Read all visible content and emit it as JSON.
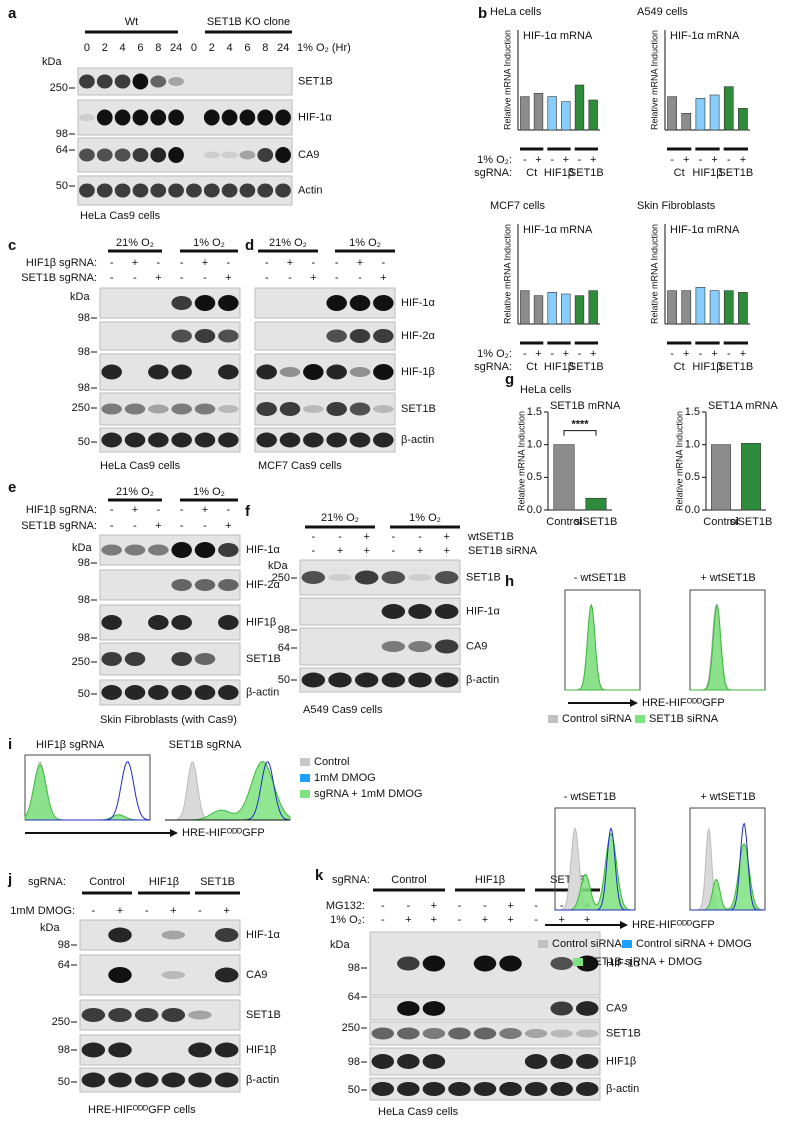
{
  "panels": {
    "a": {
      "label": "a",
      "groups": [
        "Wt",
        "SET1B KO clone"
      ],
      "lanes": [
        "0",
        "2",
        "4",
        "6",
        "8",
        "24",
        "0",
        "2",
        "4",
        "6",
        "8",
        "24"
      ],
      "condition": "1% O₂ (Hr)",
      "unit": "kDa",
      "markers": [
        "250",
        "98",
        "64",
        "50"
      ],
      "blots": [
        "SET1B",
        "HIF-1α",
        "CA9",
        "Actin"
      ],
      "caption": "HeLa Cas9 cells"
    },
    "b": {
      "label": "b"
    },
    "c": {
      "label": "c",
      "groups": [
        "21% O₂",
        "1% O₂"
      ],
      "rows": [
        {
          "label": "HIF1β sgRNA:",
          "signs": [
            "-",
            "+",
            "-",
            "-",
            "+",
            "-"
          ]
        },
        {
          "label": "SET1B sgRNA:",
          "signs": [
            "-",
            "-",
            "+",
            "-",
            "-",
            "+"
          ]
        }
      ],
      "unit": "kDa",
      "markers": [
        "98",
        "98",
        "98",
        "250",
        "50"
      ],
      "caption": "HeLa Cas9 cells"
    },
    "d": {
      "label": "d",
      "groups": [
        "21% O₂",
        "1% O₂"
      ],
      "rows": [
        {
          "signs": [
            "-",
            "+",
            "-",
            "-",
            "+",
            "-"
          ]
        },
        {
          "signs": [
            "-",
            "-",
            "+",
            "-",
            "-",
            "+"
          ]
        }
      ],
      "blots": [
        "HIF-1α",
        "HIF-2α",
        "HIF-1β",
        "SET1B",
        "β-actin"
      ],
      "caption": "MCF7 Cas9 cells"
    },
    "e": {
      "label": "e",
      "groups": [
        "21% O₂",
        "1% O₂"
      ],
      "rows": [
        {
          "label": "HIF1β sgRNA:",
          "signs": [
            "-",
            "+",
            "-",
            "-",
            "+",
            "-"
          ]
        },
        {
          "label": "SET1B sgRNA:",
          "signs": [
            "-",
            "-",
            "+",
            "-",
            "-",
            "+"
          ]
        }
      ],
      "unit": "kDa",
      "markers": [
        "98",
        "98",
        "98",
        "250",
        "50"
      ],
      "blots": [
        "HIF-1α",
        "HIF-2α",
        "HIF1β",
        "SET1B",
        "β-actin"
      ],
      "caption": "Skin Fibroblasts (with Cas9)"
    },
    "f": {
      "label": "f",
      "groups": [
        "21% O₂",
        "1% O₂"
      ],
      "rows": [
        {
          "label": "wtSET1B",
          "signs": [
            "-",
            "-",
            "+",
            "-",
            "-",
            "+"
          ]
        },
        {
          "label": "SET1B siRNA",
          "signs": [
            "-",
            "+",
            "+",
            "-",
            "+",
            "+"
          ]
        }
      ],
      "unit": "kDa",
      "markers": [
        "250",
        "98",
        "64",
        "50"
      ],
      "blots": [
        "SET1B",
        "HIF-1α",
        "CA9",
        "β-actin"
      ],
      "caption": "A549 Cas9 cells"
    },
    "g": {
      "label": "g"
    },
    "h": {
      "label": "h",
      "top_titles": [
        "- wtSET1B",
        "+ wtSET1B"
      ],
      "bottom_titles": [
        "- wtSET1B",
        "+ wtSET1B"
      ],
      "axis_label": "HRE-HIFᴼᴰᴰGFP",
      "top_legend": [
        "Control siRNA",
        "SET1B siRNA"
      ],
      "bottom_legend": [
        "Control siRNA",
        "Control siRNA + DMOG",
        "SET1B siRNA + DMOG"
      ]
    },
    "i": {
      "label": "i",
      "titles": [
        "HIF1β sgRNA",
        "SET1B sgRNA"
      ],
      "legend": [
        "Control",
        "1mM DMOG",
        "sgRNA + 1mM DMOG"
      ],
      "axis_label": "HRE-HIFᴼᴰᴰGFP"
    },
    "j": {
      "label": "j",
      "group_label": "sgRNA:",
      "groups": [
        "Control",
        "HIF1β",
        "SET1B"
      ],
      "rows": [
        {
          "label": "1mM DMOG:",
          "signs": [
            "-",
            "+",
            "-",
            "+",
            "-",
            "+"
          ]
        }
      ],
      "unit": "kDa",
      "markers": [
        "98",
        "64",
        "250",
        "98",
        "50"
      ],
      "blots": [
        "HIF-1α",
        "CA9",
        "SET1B",
        "HIF1β",
        "β-actin"
      ],
      "caption": "HRE-HIFᴼᴰᴰGFP cells"
    },
    "k": {
      "label": "k",
      "group_label": "sgRNA:",
      "groups": [
        "Control",
        "HIF1β",
        "SET1B"
      ],
      "rows": [
        {
          "label": "MG132:",
          "signs": [
            "-",
            "-",
            "+",
            "-",
            "-",
            "+",
            "-",
            "-",
            "+"
          ]
        },
        {
          "label": "1% O₂:",
          "signs": [
            "-",
            "+",
            "+",
            "-",
            "+",
            "+",
            "-",
            "+",
            "+"
          ]
        }
      ],
      "unit": "kDa",
      "markers": [
        "98",
        "64",
        "250",
        "98",
        "50"
      ],
      "blots": [
        "HIF-1α",
        "CA9",
        "SET1B",
        "HIF1β",
        "β-actin"
      ],
      "caption": "HeLa Cas9 cells"
    }
  },
  "chart_data": [
    {
      "type": "bar",
      "title": "HeLa cells",
      "subtitle": "HIF-1α mRNA",
      "y_label": "Relative mRNA Induction",
      "categories": [
        "-",
        "+",
        "-",
        "+",
        "-",
        "+"
      ],
      "groups": [
        "Ct",
        "HIF1β",
        "SET1B"
      ],
      "row_labels": [
        "1% O₂:",
        "sgRNA:"
      ],
      "values": [
        1.0,
        1.1,
        1.0,
        0.85,
        1.35,
        0.9
      ],
      "colors": [
        "#8c8c8c",
        "#8c8c8c",
        "#87cefa",
        "#87cefa",
        "#2e8b3a",
        "#2e8b3a"
      ],
      "ylim": [
        0,
        3
      ]
    },
    {
      "type": "bar",
      "title": "A549 cells",
      "subtitle": "HIF-1α mRNA",
      "y_label": "Relative mRNA Induction",
      "categories": [
        "-",
        "+",
        "-",
        "+",
        "-",
        "+"
      ],
      "groups": [
        "Ct",
        "HIF1β",
        "SET1B"
      ],
      "values": [
        1.0,
        0.5,
        0.95,
        1.05,
        1.3,
        0.65
      ],
      "colors": [
        "#8c8c8c",
        "#8c8c8c",
        "#87cefa",
        "#87cefa",
        "#2e8b3a",
        "#2e8b3a"
      ],
      "ylim": [
        0,
        3
      ]
    },
    {
      "type": "bar",
      "title": "MCF7 cells",
      "subtitle": "HIF-1α mRNA",
      "y_label": "Relative mRNA Induction",
      "categories": [
        "-",
        "+",
        "-",
        "+",
        "-",
        "+"
      ],
      "groups": [
        "Ct",
        "HIF1β",
        "SET1B"
      ],
      "row_labels": [
        "1% O₂:",
        "sgRNA:"
      ],
      "values": [
        1.0,
        0.85,
        0.95,
        0.9,
        0.85,
        1.0
      ],
      "colors": [
        "#8c8c8c",
        "#8c8c8c",
        "#87cefa",
        "#87cefa",
        "#2e8b3a",
        "#2e8b3a"
      ],
      "ylim": [
        0,
        3
      ]
    },
    {
      "type": "bar",
      "title": "Skin Fibroblasts",
      "subtitle": "HIF-1α mRNA",
      "y_label": "Relative mRNA Induction",
      "categories": [
        "-",
        "+",
        "-",
        "+",
        "-",
        "+"
      ],
      "groups": [
        "Ct",
        "HIF1β",
        "SET1B"
      ],
      "values": [
        1.0,
        1.0,
        1.1,
        1.0,
        1.0,
        0.95
      ],
      "colors": [
        "#8c8c8c",
        "#8c8c8c",
        "#87cefa",
        "#87cefa",
        "#2e8b3a",
        "#2e8b3a"
      ],
      "ylim": [
        0,
        3
      ]
    },
    {
      "type": "bar",
      "title": "HeLa cells",
      "subtitle": "SET1B mRNA",
      "y_label": "Relative mRNA Induction",
      "categories": [
        "Control",
        "siSET1B"
      ],
      "values": [
        1.0,
        0.18
      ],
      "colors": [
        "#8c8c8c",
        "#2e8b3a"
      ],
      "annotation": "****",
      "ylim": [
        0,
        1.5
      ],
      "yticks": [
        {
          "value": 0,
          "label": "0.0"
        },
        {
          "value": 0.5,
          "label": "0.5"
        },
        {
          "value": 1,
          "label": "1.0"
        },
        {
          "value": 1.5,
          "label": "1.5"
        }
      ]
    },
    {
      "type": "bar",
      "subtitle": "SET1A mRNA",
      "y_label": "Relative mRNA Induction",
      "categories": [
        "Control",
        "siSET1B"
      ],
      "values": [
        1.0,
        1.02
      ],
      "colors": [
        "#8c8c8c",
        "#2e8b3a"
      ],
      "ylim": [
        0,
        1.5
      ],
      "yticks": [
        {
          "value": 0,
          "label": "0.0"
        },
        {
          "value": 0.5,
          "label": "0.5"
        },
        {
          "value": 1,
          "label": "1.0"
        },
        {
          "value": 1.5,
          "label": "1.5"
        }
      ]
    }
  ]
}
